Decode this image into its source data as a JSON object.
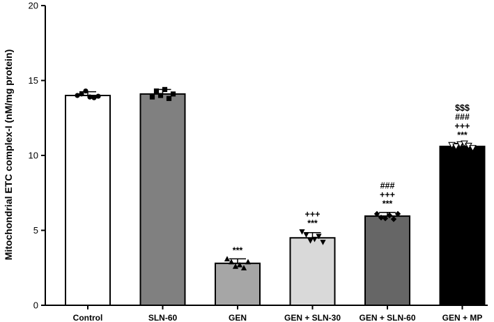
{
  "chart_data": {
    "type": "bar",
    "title": "",
    "xlabel": "",
    "ylabel": "Mitochondrial ETC complex-I (nM/mg protein)",
    "ylim": [
      0,
      20
    ],
    "yticks": [
      0,
      5,
      10,
      15,
      20
    ],
    "categories": [
      "Control",
      "SLN-60",
      "GEN",
      "GEN + SLN-30",
      "GEN + SLN-60",
      "GEN + MP"
    ],
    "values": [
      14.0,
      14.1,
      2.8,
      4.5,
      5.95,
      10.6
    ],
    "errors": [
      0.25,
      0.3,
      0.3,
      0.35,
      0.25,
      0.2
    ],
    "bar_colors": [
      "#ffffff",
      "#808080",
      "#a6a6a6",
      "#d9d9d9",
      "#666666",
      "#000000"
    ],
    "points": [
      [
        14.0,
        14.1,
        14.3,
        13.9,
        13.85,
        13.95
      ],
      [
        13.9,
        14.3,
        14.0,
        14.4,
        13.8,
        14.1
      ],
      [
        3.1,
        2.9,
        2.6,
        2.7,
        2.5,
        2.9
      ],
      [
        4.9,
        4.7,
        4.3,
        4.4,
        4.6,
        4.2
      ],
      [
        6.1,
        5.85,
        5.8,
        6.0,
        5.75,
        6.1
      ],
      [
        10.7,
        10.6,
        10.75,
        10.8,
        10.65,
        10.5
      ]
    ],
    "marker_shapes": [
      "circle",
      "square",
      "triangle-up",
      "triangle-down",
      "diamond",
      "triangle-down-open"
    ],
    "significance": [
      [],
      [],
      [
        "***"
      ],
      [
        "+++",
        "***"
      ],
      [
        "###",
        "+++",
        "***"
      ],
      [
        "$$$",
        "###",
        "+++",
        "***"
      ]
    ]
  }
}
